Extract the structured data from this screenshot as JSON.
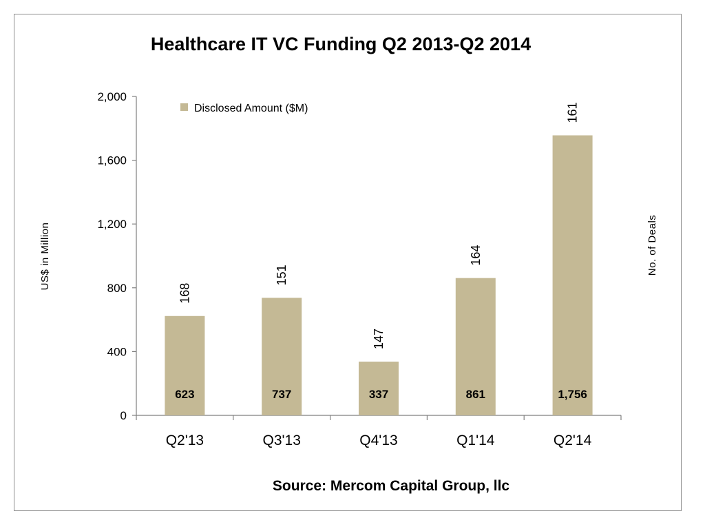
{
  "chart_data": {
    "type": "bar",
    "title": "Healthcare IT VC Funding Q2 2013-Q2 2014",
    "categories": [
      "Q2'13",
      "Q3'13",
      "Q4'13",
      "Q1'14",
      "Q2'14"
    ],
    "series": [
      {
        "name": "Disclosed Amount ($M)",
        "values": [
          623,
          737,
          337,
          861,
          1756
        ],
        "value_labels": [
          "623",
          "737",
          "337",
          "861",
          "1,756"
        ],
        "color": "#c4b995"
      }
    ],
    "deals": [
      168,
      151,
      147,
      164,
      161
    ],
    "ylabel": "US$ in Million",
    "y2label": "No. of Deals",
    "ylim": [
      0,
      2000
    ],
    "yticks": [
      0,
      400,
      800,
      1200,
      1600,
      2000
    ],
    "ytick_labels": [
      "0",
      "400",
      "800",
      "1,200",
      "1,600",
      "2,000"
    ],
    "source": "Source: Mercom Capital Group, llc",
    "legend_position": "top-left",
    "grid": false
  }
}
